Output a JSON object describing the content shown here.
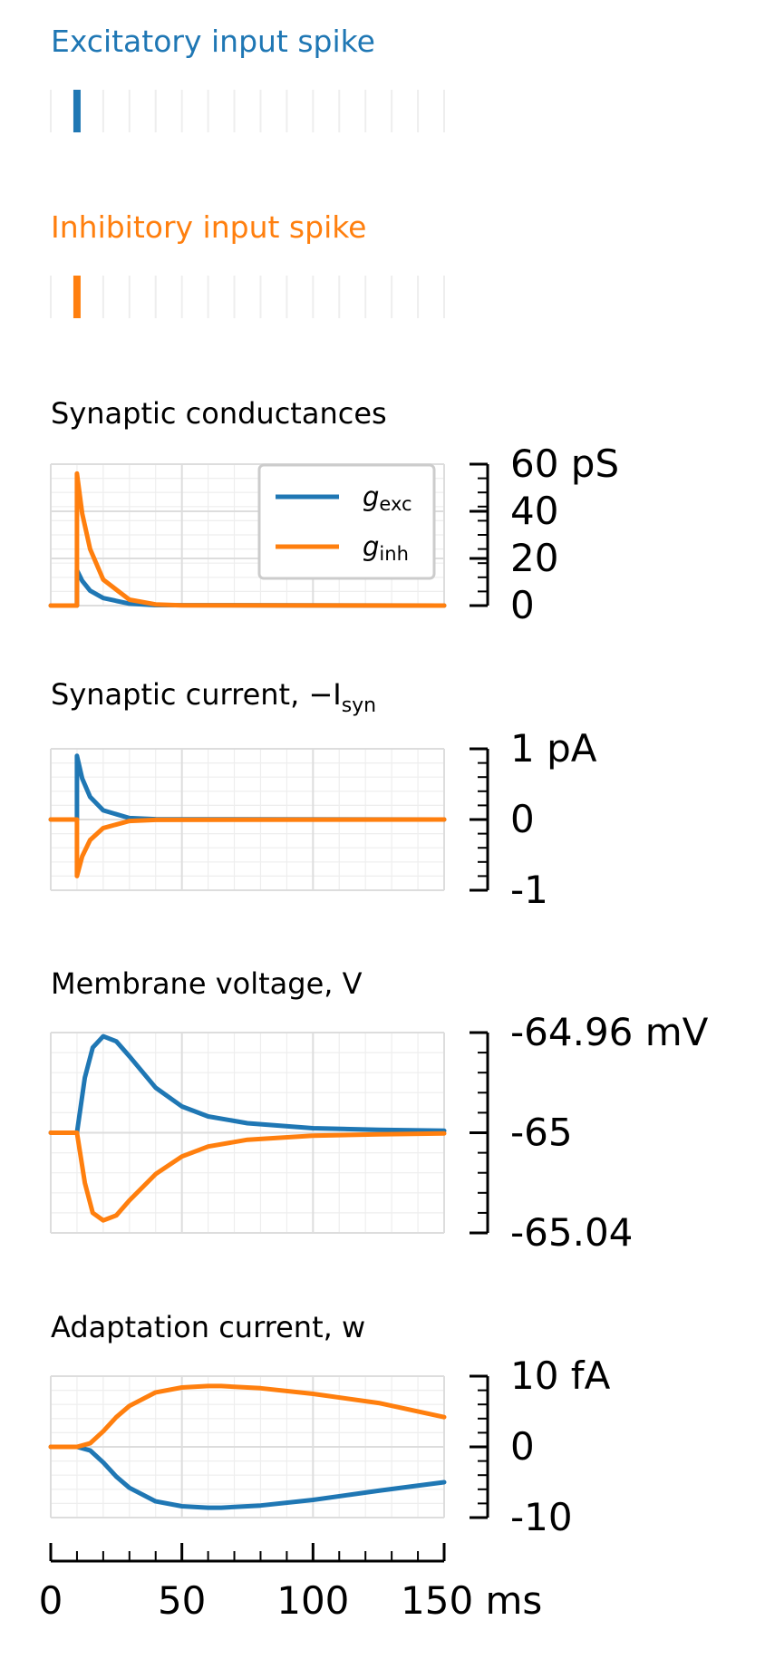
{
  "colors": {
    "exc": "#1f77b4",
    "inh": "#ff7f0e",
    "axis": "#000000",
    "grid_major": "#dddddd",
    "grid_minor": "#eeeeee",
    "text": "#000000"
  },
  "chart_data": [
    {
      "id": "exc_spike",
      "type": "raster",
      "title": "Excitatory input spike",
      "title_color": "#1f77b4",
      "spike_times_ms": [
        10
      ],
      "xlim": [
        0,
        150
      ]
    },
    {
      "id": "inh_spike",
      "type": "raster",
      "title": "Inhibitory input spike",
      "title_color": "#ff7f0e",
      "spike_times_ms": [
        10
      ],
      "xlim": [
        0,
        150
      ]
    },
    {
      "id": "conductance",
      "type": "line",
      "title": "Synaptic conductances",
      "xlim": [
        0,
        150
      ],
      "ylim": [
        0,
        60
      ],
      "yticks": [
        0,
        20,
        40,
        60
      ],
      "ytick_labels": [
        "0",
        "20",
        "40",
        "60 pS"
      ],
      "legend": {
        "placement": "top-right",
        "entries": [
          {
            "var": "g",
            "sub": "exc",
            "series": "g_exc"
          },
          {
            "var": "g",
            "sub": "inh",
            "series": "g_inh"
          }
        ]
      },
      "series": [
        {
          "name": "g_exc",
          "color": "#1f77b4",
          "x": [
            0,
            9.99,
            10,
            12,
            15,
            20,
            30,
            40,
            150
          ],
          "y": [
            0,
            0,
            15,
            10.5,
            6.3,
            3.2,
            0.8,
            0.2,
            0
          ]
        },
        {
          "name": "g_inh",
          "color": "#ff7f0e",
          "x": [
            0,
            9.99,
            10,
            12,
            15,
            20,
            30,
            40,
            50,
            150
          ],
          "y": [
            0,
            0,
            56,
            39,
            24,
            11,
            2.5,
            0.5,
            0.1,
            0
          ]
        }
      ]
    },
    {
      "id": "current",
      "type": "line",
      "title": "Synaptic current, −I",
      "title_sub": "syn",
      "xlim": [
        0,
        150
      ],
      "ylim": [
        -1,
        1
      ],
      "yticks": [
        -1,
        0,
        1
      ],
      "ytick_labels": [
        "-1",
        "0",
        "1 pA"
      ],
      "series": [
        {
          "name": "exc",
          "color": "#1f77b4",
          "x": [
            0,
            9.99,
            10,
            12,
            15,
            20,
            30,
            40,
            150
          ],
          "y": [
            0,
            0,
            0.9,
            0.58,
            0.32,
            0.13,
            0.02,
            0.005,
            0
          ]
        },
        {
          "name": "inh",
          "color": "#ff7f0e",
          "x": [
            0,
            9.99,
            10,
            12,
            15,
            20,
            30,
            40,
            150
          ],
          "y": [
            0,
            0,
            -0.8,
            -0.52,
            -0.29,
            -0.12,
            -0.02,
            -0.005,
            0
          ]
        }
      ]
    },
    {
      "id": "voltage",
      "type": "line",
      "title": "Membrane voltage, V",
      "xlim": [
        0,
        150
      ],
      "ylim": [
        -65.04,
        -64.96
      ],
      "yticks": [
        -65.04,
        -65,
        -64.96
      ],
      "ytick_labels": [
        "-65.04",
        "-65",
        "-64.96 mV"
      ],
      "series": [
        {
          "name": "exc",
          "color": "#1f77b4",
          "x": [
            0,
            10,
            13,
            16,
            20,
            25,
            30,
            40,
            50,
            60,
            75,
            100,
            125,
            150
          ],
          "y": [
            -65,
            -65,
            -64.978,
            -64.966,
            -64.9615,
            -64.9635,
            -64.9695,
            -64.982,
            -64.9895,
            -64.9935,
            -64.9962,
            -64.9982,
            -64.9988,
            -64.9992
          ]
        },
        {
          "name": "inh",
          "color": "#ff7f0e",
          "x": [
            0,
            10,
            13,
            16,
            20,
            25,
            30,
            40,
            50,
            60,
            75,
            100,
            125,
            150
          ],
          "y": [
            -65,
            -65,
            -65.02,
            -65.032,
            -65.035,
            -65.033,
            -65.027,
            -65.0165,
            -65.0095,
            -65.0055,
            -65.0028,
            -65.0012,
            -65.0006,
            -65.0003
          ]
        }
      ]
    },
    {
      "id": "adaptation",
      "type": "line",
      "title": "Adaptation current, w",
      "xlim": [
        0,
        150
      ],
      "ylim": [
        -10,
        10
      ],
      "yticks": [
        -10,
        0,
        10
      ],
      "ytick_labels": [
        "-10",
        "0",
        "10 fA"
      ],
      "xticks": [
        0,
        50,
        100,
        150
      ],
      "xtick_labels": [
        "0",
        "50",
        "100",
        "150 ms"
      ],
      "series": [
        {
          "name": "exc",
          "color": "#1f77b4",
          "x": [
            0,
            10,
            15,
            20,
            25,
            30,
            40,
            50,
            60,
            65,
            80,
            100,
            125,
            150
          ],
          "y": [
            0,
            0,
            -0.5,
            -2.2,
            -4.2,
            -5.8,
            -7.7,
            -8.4,
            -8.6,
            -8.6,
            -8.3,
            -7.5,
            -6.2,
            -5.0
          ]
        },
        {
          "name": "inh",
          "color": "#ff7f0e",
          "x": [
            0,
            10,
            15,
            20,
            25,
            30,
            40,
            50,
            60,
            65,
            80,
            100,
            125,
            150
          ],
          "y": [
            0,
            0,
            0.5,
            2.2,
            4.2,
            5.8,
            7.7,
            8.4,
            8.6,
            8.6,
            8.3,
            7.5,
            6.2,
            4.2
          ]
        }
      ]
    }
  ]
}
